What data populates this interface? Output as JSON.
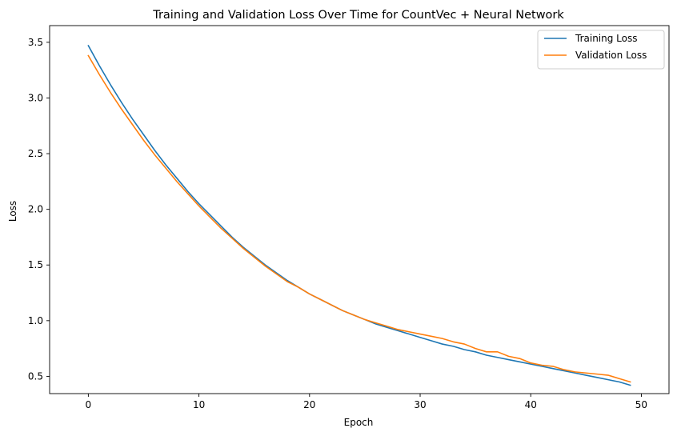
{
  "chart_data": {
    "type": "line",
    "title": "Training and Validation Loss Over Time for CountVec + Neural Network",
    "xlabel": "Epoch",
    "ylabel": "Loss",
    "xlim": [
      -3.5,
      52.5
    ],
    "ylim": [
      0.345,
      3.65
    ],
    "xticks": [
      0,
      10,
      20,
      30,
      40,
      50
    ],
    "yticks": [
      0.5,
      1.0,
      1.5,
      2.0,
      2.5,
      3.0,
      3.5
    ],
    "xtick_labels": [
      "0",
      "10",
      "20",
      "30",
      "40",
      "50"
    ],
    "ytick_labels": [
      "0.5",
      "1.0",
      "1.5",
      "2.0",
      "2.5",
      "3.0",
      "3.5"
    ],
    "grid": false,
    "legend_position": "top-right",
    "series": [
      {
        "name": "Training Loss",
        "color": "#1f77b4",
        "x": [
          0,
          1,
          2,
          3,
          4,
          5,
          6,
          7,
          8,
          9,
          10,
          11,
          12,
          13,
          14,
          15,
          16,
          17,
          18,
          19,
          20,
          21,
          22,
          23,
          24,
          25,
          26,
          27,
          28,
          29,
          30,
          31,
          32,
          33,
          34,
          35,
          36,
          37,
          38,
          39,
          40,
          41,
          42,
          43,
          44,
          45,
          46,
          47,
          48,
          49
        ],
        "values": [
          3.47,
          3.29,
          3.12,
          2.96,
          2.81,
          2.67,
          2.53,
          2.4,
          2.28,
          2.16,
          2.05,
          1.95,
          1.85,
          1.75,
          1.66,
          1.58,
          1.5,
          1.43,
          1.36,
          1.3,
          1.24,
          1.19,
          1.14,
          1.09,
          1.05,
          1.01,
          0.97,
          0.94,
          0.91,
          0.88,
          0.85,
          0.82,
          0.79,
          0.77,
          0.74,
          0.72,
          0.69,
          0.67,
          0.65,
          0.63,
          0.61,
          0.59,
          0.57,
          0.55,
          0.53,
          0.51,
          0.49,
          0.47,
          0.45,
          0.42
        ]
      },
      {
        "name": "Validation Loss",
        "color": "#ff7f0e",
        "x": [
          0,
          1,
          2,
          3,
          4,
          5,
          6,
          7,
          8,
          9,
          10,
          11,
          12,
          13,
          14,
          15,
          16,
          17,
          18,
          19,
          20,
          21,
          22,
          23,
          24,
          25,
          26,
          27,
          28,
          29,
          30,
          31,
          32,
          33,
          34,
          35,
          36,
          37,
          38,
          39,
          40,
          41,
          42,
          43,
          44,
          45,
          46,
          47,
          48,
          49
        ],
        "values": [
          3.38,
          3.21,
          3.05,
          2.9,
          2.76,
          2.62,
          2.49,
          2.37,
          2.25,
          2.14,
          2.03,
          1.93,
          1.83,
          1.74,
          1.65,
          1.57,
          1.49,
          1.42,
          1.35,
          1.3,
          1.24,
          1.19,
          1.14,
          1.09,
          1.05,
          1.01,
          0.98,
          0.95,
          0.92,
          0.9,
          0.88,
          0.86,
          0.84,
          0.81,
          0.79,
          0.75,
          0.72,
          0.72,
          0.68,
          0.66,
          0.62,
          0.6,
          0.59,
          0.56,
          0.54,
          0.53,
          0.52,
          0.51,
          0.48,
          0.45
        ]
      }
    ]
  }
}
